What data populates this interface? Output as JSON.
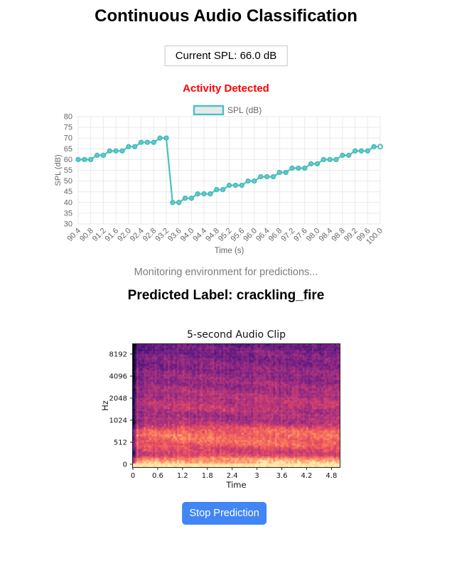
{
  "header": {
    "title": "Continuous Audio Classification"
  },
  "spl": {
    "current_label": "Current SPL: 66.0 dB",
    "current_value_db": 66.0
  },
  "status": {
    "activity": "Activity Detected",
    "monitoring": "Monitoring environment for predictions...",
    "predicted": "Predicted Label: crackling_fire",
    "predicted_class": "crackling_fire"
  },
  "controls": {
    "stop_button": "Stop Prediction"
  },
  "colors": {
    "accent_teal": "#4bc0c0",
    "marker_fill": "#62c9c9",
    "marker_stroke": "#3fb6b6",
    "legend_fill": "#e4e9e9",
    "alert_red": "#ff0000",
    "button_blue": "#4285f4",
    "tick_text": "#666666",
    "grid": "#e9e9e9",
    "muted_text": "#7d7d7d",
    "mpl_text": "#111111"
  },
  "chart_data": [
    {
      "type": "line",
      "legend": "SPL (dB)",
      "legend_position": "top",
      "xlabel": "Time (s)",
      "ylabel": "SPL (dB)",
      "ylim": [
        30,
        80
      ],
      "ytick_step": 5,
      "grid": true,
      "line_color": "#4bc0c0",
      "x": [
        90.4,
        90.6,
        90.8,
        91.0,
        91.2,
        91.4,
        91.6,
        91.8,
        92.0,
        92.2,
        92.4,
        92.6,
        92.8,
        93.0,
        93.2,
        93.4,
        93.6,
        93.8,
        94.0,
        94.2,
        94.4,
        94.6,
        94.8,
        95.0,
        95.2,
        95.4,
        95.6,
        95.8,
        96.0,
        96.2,
        96.4,
        96.6,
        96.8,
        97.0,
        97.2,
        97.4,
        97.6,
        97.8,
        98.0,
        98.2,
        98.4,
        98.6,
        98.8,
        99.0,
        99.2,
        99.4,
        99.6,
        99.8,
        100.0
      ],
      "series": [
        {
          "name": "SPL (dB)",
          "values": [
            60,
            60,
            60,
            62,
            62,
            64,
            64,
            64,
            66,
            66,
            68,
            68,
            68,
            70,
            70,
            40,
            40,
            42,
            42,
            44,
            44,
            44,
            46,
            46,
            48,
            48,
            48,
            50,
            50,
            52,
            52,
            52,
            54,
            54,
            56,
            56,
            56,
            58,
            58,
            60,
            60,
            60,
            62,
            62,
            64,
            64,
            64,
            66,
            66
          ]
        }
      ],
      "x_tick_labels": [
        "90.4",
        "90.8",
        "91.2",
        "91.6",
        "92.0",
        "92.4",
        "92.8",
        "93.2",
        "93.6",
        "94.0",
        "94.4",
        "94.8",
        "95.2",
        "95.6",
        "96.0",
        "96.4",
        "96.8",
        "97.2",
        "97.6",
        "98.0",
        "98.4",
        "98.8",
        "99.2",
        "99.6",
        "100.0"
      ]
    },
    {
      "type": "heatmap",
      "title": "5-second Audio Clip",
      "xlabel": "Time",
      "ylabel": "Hz",
      "x_ticks": [
        "0",
        "0.6",
        "1.2",
        "1.8",
        "2.4",
        "3",
        "3.6",
        "4.2",
        "4.8"
      ],
      "y_ticks": [
        "8192",
        "4096",
        "2048",
        "1024",
        "512",
        "0"
      ],
      "x_range": [
        0,
        5
      ],
      "colormap": "magma",
      "intensity_profile": [
        [
          0,
          0.97
        ],
        [
          0.03,
          0.9
        ],
        [
          0.06,
          0.84
        ],
        [
          0.09,
          0.62
        ],
        [
          0.13,
          0.6
        ],
        [
          0.18,
          0.72
        ],
        [
          0.25,
          0.74
        ],
        [
          0.3,
          0.7
        ],
        [
          0.36,
          0.5
        ],
        [
          0.42,
          0.47
        ],
        [
          0.48,
          0.55
        ],
        [
          0.55,
          0.52
        ],
        [
          0.62,
          0.48
        ],
        [
          0.7,
          0.45
        ],
        [
          0.78,
          0.42
        ],
        [
          0.86,
          0.4
        ],
        [
          0.93,
          0.37
        ],
        [
          1.0,
          0.34
        ]
      ],
      "left_edge_dark_fraction": 0.018,
      "note": "log-frequency spectrogram: bright orange low-frequency energy fading to dark purple highs, dark onset column at t=0"
    }
  ]
}
